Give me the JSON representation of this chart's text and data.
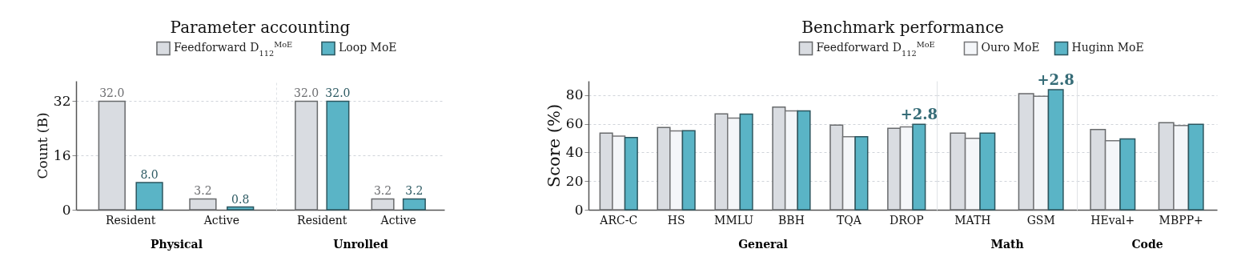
{
  "chart_data": [
    {
      "type": "bar",
      "title": "Parameter accounting",
      "xlabel": "Physical",
      "ylabel": "Count (B)",
      "categories": [
        "Resident",
        "Active"
      ],
      "series": [
        {
          "name": "Feedforward D$_{112}$$^{MoE}$",
          "color": "#d9dce1",
          "values": [
            32.0,
            3.2
          ],
          "value_labels": [
            "32.0",
            "3.2"
          ]
        },
        {
          "name": "Loop MoE",
          "color": "#5ab4c6",
          "values": [
            8.0,
            0.8
          ],
          "value_labels": [
            "8.0",
            "0.8"
          ]
        }
      ],
      "ylim": [
        0,
        38
      ],
      "yticks": [
        0,
        16,
        32
      ],
      "grid": "y",
      "legend": "top"
    },
    {
      "type": "bar",
      "xlabel": "Unrolled",
      "categories": [
        "Resident",
        "Active"
      ],
      "series": [
        {
          "color": "#d9dce1",
          "values": [
            32.0,
            3.2
          ],
          "value_labels": [
            "32.0",
            "3.2"
          ]
        },
        {
          "color": "#5ab4c6",
          "values": [
            32.0,
            3.2
          ],
          "value_labels": [
            "32.0",
            "3.2"
          ]
        }
      ],
      "ylim": [
        0,
        38
      ],
      "yticks": [
        0,
        16,
        32
      ],
      "grid": "y",
      "tick_labels": "x"
    },
    {
      "type": "bar",
      "title": "Benchmark performance",
      "xlabel": "General",
      "ylabel": "Score (%)",
      "categories": [
        "ARC-C",
        "HS",
        "MMLU",
        "BBH",
        "TQA",
        "DROP"
      ],
      "series": [
        {
          "name": "Feedforward D$_{112}$$^{MoE}$",
          "color": "#d9dce1",
          "values": [
            53.5,
            57.4,
            67.0,
            71.7,
            59.1,
            56.9
          ]
        },
        {
          "name": "Ouro MoE",
          "color": "#f4f6f9",
          "values": [
            51.4,
            55.0,
            64.0,
            69.1,
            51.0,
            57.8
          ]
        },
        {
          "name": "Huginn MoE",
          "color": "#5ab4c6",
          "values": [
            50.5,
            55.2,
            66.8,
            69.1,
            51.0,
            59.7
          ]
        }
      ],
      "annotations": [
        {
          "text": "+2.8",
          "x": "DROP",
          "y": 59.7
        }
      ],
      "ylim": [
        0,
        90
      ],
      "yticks": [
        0,
        20,
        40,
        60,
        80
      ],
      "grid": "y",
      "legend": "top"
    },
    {
      "type": "bar",
      "xlabel": "Math",
      "categories": [
        "MATH",
        "GSM"
      ],
      "series": [
        {
          "color": "#d9dce1",
          "values": [
            53.5,
            81.0
          ]
        },
        {
          "color": "#f4f6f9",
          "values": [
            49.9,
            79.3
          ]
        },
        {
          "color": "#5ab4c6",
          "values": [
            53.5,
            83.8
          ]
        }
      ],
      "annotations": [
        "+2.8"
      ],
      "ylim": [
        0,
        90
      ],
      "yticks": [
        0,
        20,
        40,
        60,
        80
      ],
      "grid": "y",
      "tick_labels": "x"
    },
    {
      "type": "bar",
      "xlabel": "Code",
      "categories": [
        "HEval+",
        "MBPP+"
      ],
      "series": [
        {
          "color": "#d9dce1",
          "values": [
            56.1,
            60.8
          ]
        },
        {
          "color": "#f4f6f9",
          "values": [
            48.2,
            58.9
          ]
        },
        {
          "color": "#5ab4c6",
          "values": [
            49.5,
            59.7
          ]
        }
      ],
      "ylim": [
        0,
        90
      ],
      "yticks": [
        0,
        20,
        40,
        60,
        80
      ],
      "grid": "y",
      "tick_labels": "x"
    }
  ]
}
